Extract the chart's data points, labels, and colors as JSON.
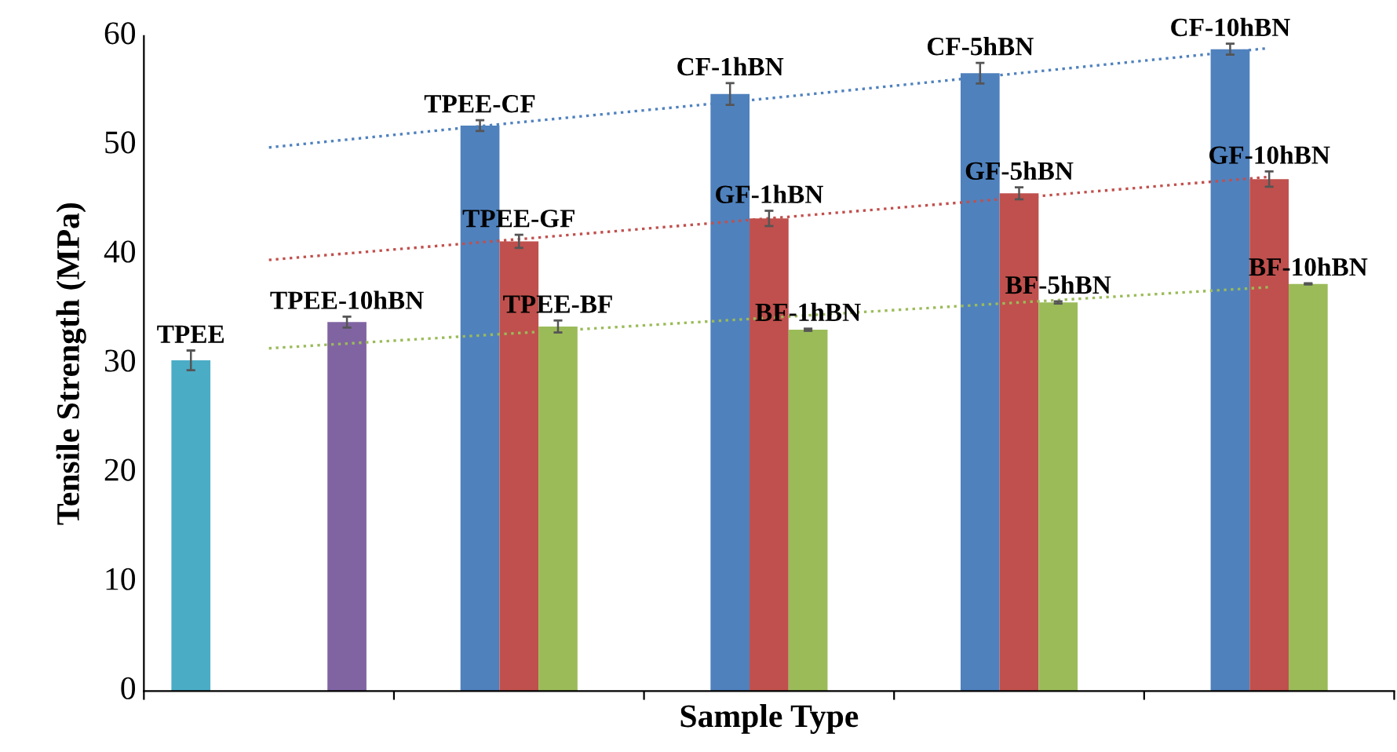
{
  "chart_data": {
    "type": "bar",
    "xlabel": "Sample Type",
    "ylabel": "Tensile Strength (MPa)",
    "categories": [
      null,
      null,
      null,
      null,
      null
    ],
    "series": [
      {
        "color": "#4bacc6",
        "values": [
          30.3,
          null,
          null,
          null,
          null
        ],
        "errors": [
          0.9,
          null,
          null,
          null,
          null
        ],
        "value_labels": [
          "TPEE",
          null,
          null,
          null,
          null
        ]
      },
      {
        "color": "#4f81bd",
        "values": [
          null,
          51.8,
          54.7,
          56.6,
          58.8
        ],
        "errors": [
          null,
          0.5,
          1.0,
          0.95,
          0.5
        ],
        "value_labels": [
          null,
          "TPEE-CF",
          "CF-1hBN",
          "CF-5hBN",
          "CF-10hBN"
        ]
      },
      {
        "color": "#c0504d",
        "values": [
          null,
          41.2,
          43.3,
          45.6,
          46.9
        ],
        "errors": [
          null,
          0.6,
          0.7,
          0.55,
          0.7
        ],
        "value_labels": [
          null,
          "TPEE-GF",
          "GF-1hBN",
          "GF-5hBN",
          "GF-10hBN"
        ]
      },
      {
        "color": "#9bbb59",
        "values": [
          null,
          33.4,
          33.1,
          35.6,
          37.3
        ],
        "errors": [
          null,
          0.55,
          0.1,
          0.1,
          0.05
        ],
        "value_labels": [
          null,
          "TPEE-BF",
          "BF-1hBN",
          "BF-5hBN",
          "BF-10hBN"
        ]
      },
      {
        "color": "#8064a2",
        "values": [
          33.8,
          null,
          null,
          null,
          null
        ],
        "errors": [
          0.5,
          null,
          null,
          null,
          null
        ],
        "value_labels": [
          "TPEE-10hBN",
          null,
          null,
          null,
          null
        ]
      },
      {
        "type": "line",
        "color": "#4f81bd",
        "values": [
          49.8,
          52.1,
          54.3,
          56.6,
          58.9
        ],
        "line_style": "dotted",
        "marker": "none"
      },
      {
        "type": "line",
        "color": "#c0504d",
        "values": [
          39.5,
          41.4,
          43.3,
          45.2,
          47.1
        ],
        "line_style": "dotted",
        "marker": "none"
      },
      {
        "type": "line",
        "color": "#9bbb59",
        "values": [
          31.4,
          32.8,
          34.2,
          35.6,
          37.0
        ],
        "line_style": "dotted",
        "marker": "none"
      }
    ],
    "ylim": [
      0,
      60
    ],
    "yticks": [
      0,
      10,
      20,
      30,
      40,
      50,
      60
    ],
    "grid": false,
    "legend": false,
    "tick_labels": "y"
  }
}
